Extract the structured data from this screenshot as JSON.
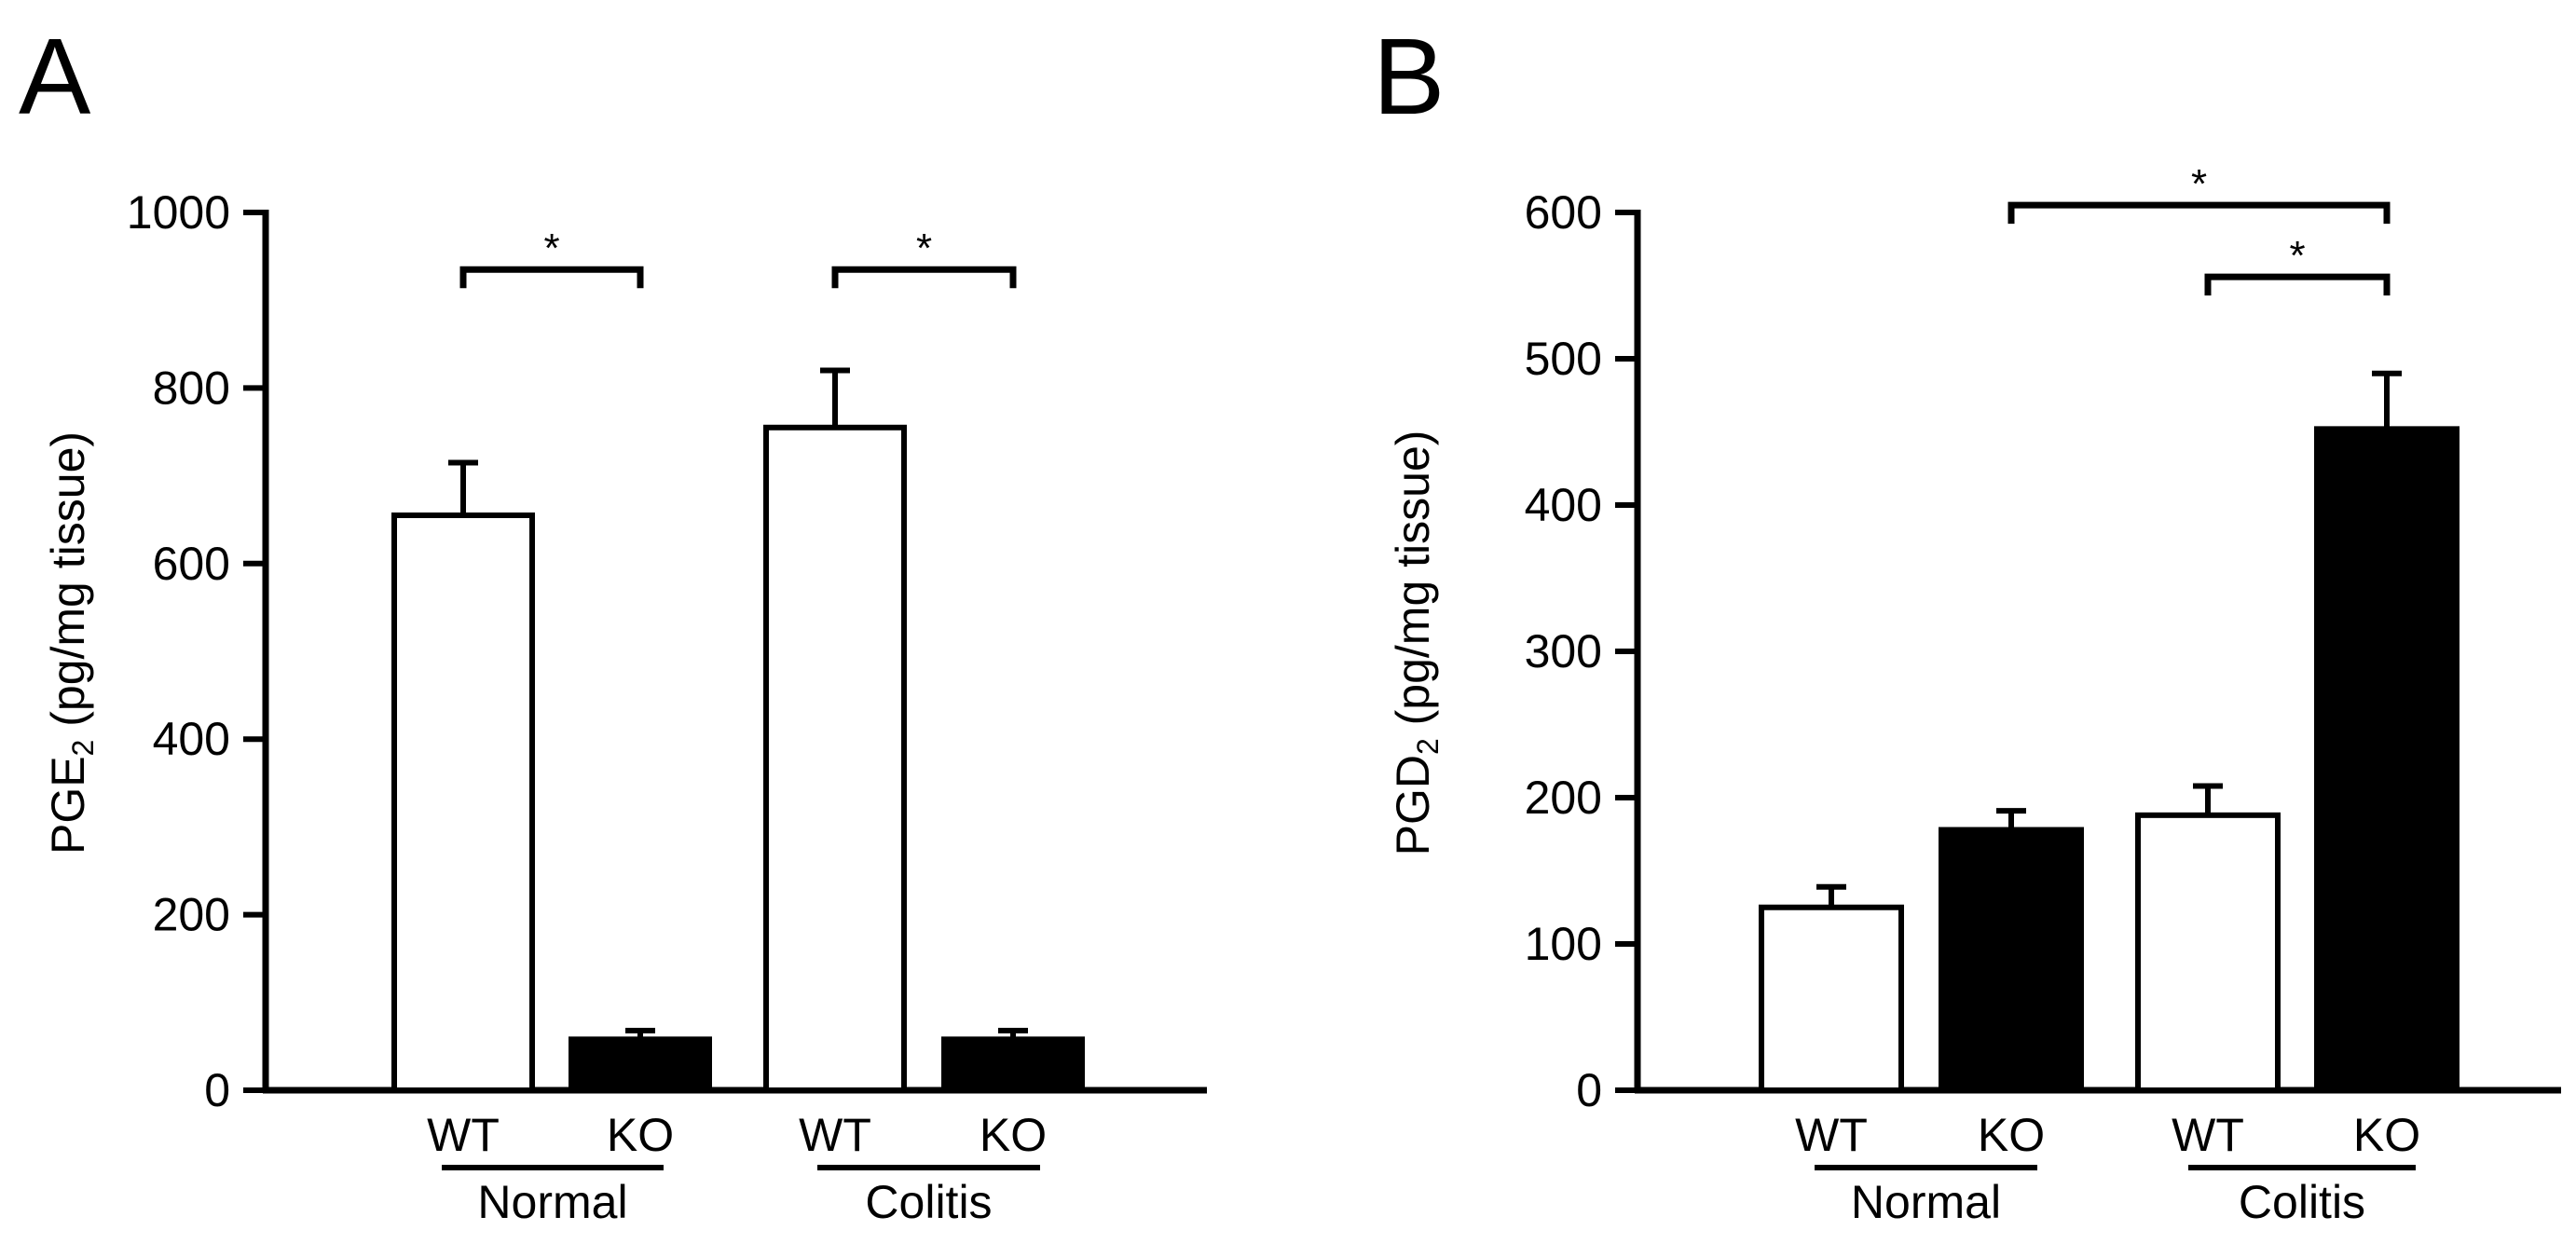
{
  "chart_data": [
    {
      "panel": "A",
      "type": "bar",
      "ylabel_main": "PGE",
      "ylabel_sub": "2",
      "ylabel_rest": " (pg/mg tissue)",
      "ylim": [
        0,
        1000
      ],
      "yticks": [
        0,
        200,
        400,
        600,
        800,
        1000
      ],
      "groups": [
        {
          "label": "Normal",
          "bars": [
            {
              "category": "WT",
              "value": 655,
              "error": 60,
              "fill": "#ffffff"
            },
            {
              "category": "KO",
              "value": 58,
              "error": 10,
              "fill": "#000000"
            }
          ]
        },
        {
          "label": "Colitis",
          "bars": [
            {
              "category": "WT",
              "value": 755,
              "error": 65,
              "fill": "#ffffff"
            },
            {
              "category": "KO",
              "value": 58,
              "error": 10,
              "fill": "#000000"
            }
          ]
        }
      ],
      "significance": [
        {
          "from": [
            0,
            0
          ],
          "to": [
            0,
            1
          ],
          "y": 935,
          "label": "*"
        },
        {
          "from": [
            1,
            0
          ],
          "to": [
            1,
            1
          ],
          "y": 935,
          "label": "*"
        }
      ]
    },
    {
      "panel": "B",
      "type": "bar",
      "ylabel_main": "PGD",
      "ylabel_sub": "2",
      "ylabel_rest": " (pg/mg tissue)",
      "ylim": [
        0,
        600
      ],
      "yticks": [
        0,
        100,
        200,
        300,
        400,
        500,
        600
      ],
      "groups": [
        {
          "label": "Normal",
          "bars": [
            {
              "category": "WT",
              "value": 125,
              "error": 14,
              "fill": "#ffffff"
            },
            {
              "category": "KO",
              "value": 178,
              "error": 13,
              "fill": "#000000"
            }
          ]
        },
        {
          "label": "Colitis",
          "bars": [
            {
              "category": "WT",
              "value": 188,
              "error": 20,
              "fill": "#ffffff"
            },
            {
              "category": "KO",
              "value": 452,
              "error": 38,
              "fill": "#000000"
            }
          ]
        }
      ],
      "significance": [
        {
          "from": [
            0,
            1
          ],
          "to": [
            1,
            1
          ],
          "y": 605,
          "label": "*"
        },
        {
          "from": [
            1,
            0
          ],
          "to": [
            1,
            1
          ],
          "y": 556,
          "label": "*"
        }
      ]
    }
  ]
}
